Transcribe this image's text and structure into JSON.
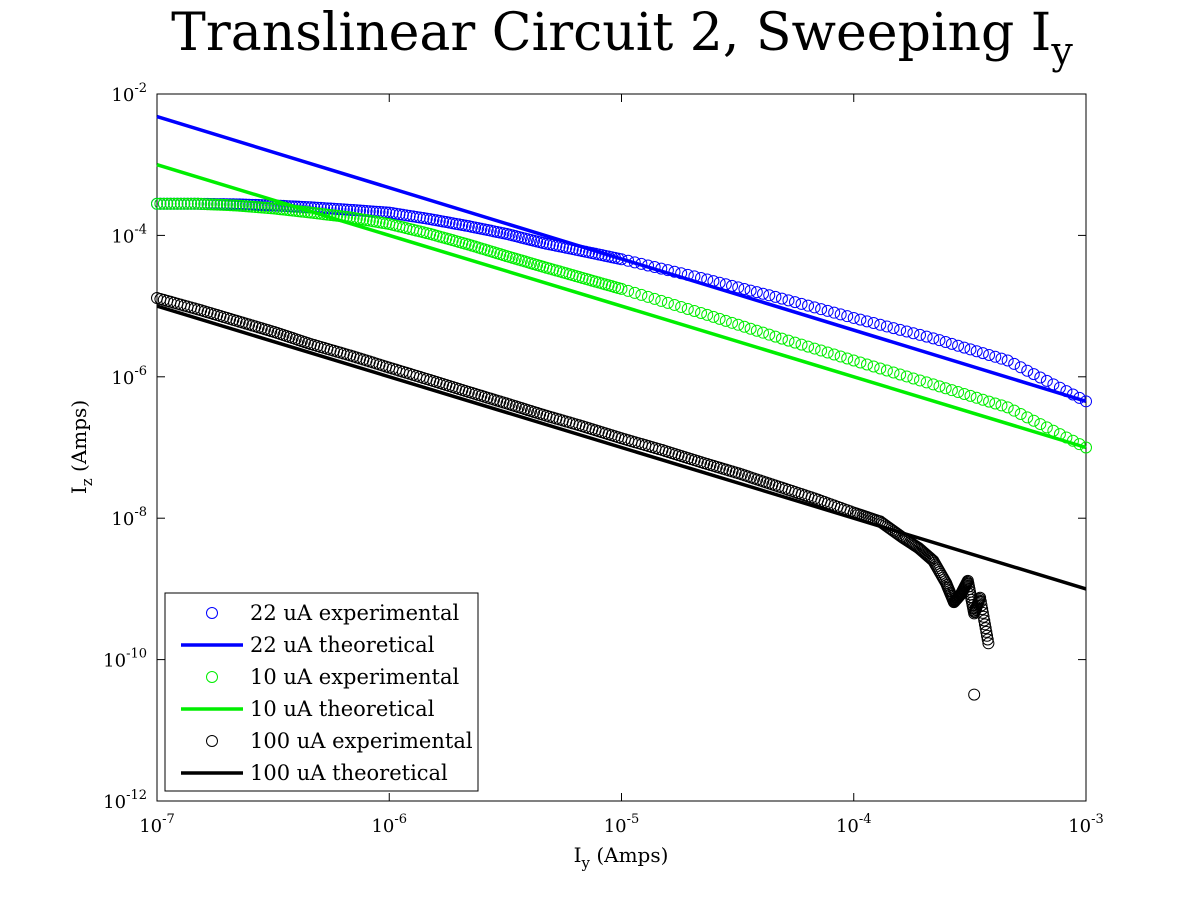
{
  "chart_data": {
    "type": "line",
    "title": {
      "main": "Translinear Circuit 2, Sweeping I",
      "sub": "y"
    },
    "xlabel": {
      "main": "I",
      "sub": "y",
      "rest": " (Amps)"
    },
    "ylabel": {
      "main": "I",
      "sub": "z",
      "rest": " (Amps)"
    },
    "xscale": "log",
    "yscale": "log",
    "xlim": [
      1e-07,
      0.001
    ],
    "ylim": [
      1e-12,
      0.01
    ],
    "grid": false,
    "legend_position": "bottom-left",
    "x_ticks": [
      {
        "value": 1e-07,
        "base": "10",
        "exp": "-7"
      },
      {
        "value": 1e-06,
        "base": "10",
        "exp": "-6"
      },
      {
        "value": 1e-05,
        "base": "10",
        "exp": "-5"
      },
      {
        "value": 0.0001,
        "base": "10",
        "exp": "-4"
      },
      {
        "value": 0.001,
        "base": "10",
        "exp": "-3"
      }
    ],
    "y_ticks": [
      {
        "value": 1e-12,
        "base": "10",
        "exp": "-12"
      },
      {
        "value": 1e-10,
        "base": "10",
        "exp": "-10"
      },
      {
        "value": 1e-08,
        "base": "10",
        "exp": "-8"
      },
      {
        "value": 1e-06,
        "base": "10",
        "exp": "-6"
      },
      {
        "value": 0.0001,
        "base": "10",
        "exp": "-4"
      },
      {
        "value": 0.01,
        "base": "10",
        "exp": "-2"
      }
    ],
    "series": [
      {
        "name": "22 uA experimental",
        "style": "markers",
        "color": "#0000ff",
        "x": [
          1e-07,
          1.5e-07,
          2.2e-07,
          3.2e-07,
          4.6e-07,
          6.8e-07,
          1e-06,
          1.5e-06,
          2.2e-06,
          3.2e-06,
          4.6e-06,
          6.8e-06,
          1e-05,
          2.2e-05,
          4.6e-05,
          0.0001,
          0.00022,
          0.00046,
          0.001
        ],
        "y": [
          0.00028,
          0.00028,
          0.000275,
          0.000265,
          0.00025,
          0.00023,
          0.00021,
          0.00017,
          0.000135,
          0.000105,
          7.8e-05,
          6e-05,
          4.6e-05,
          2.5e-05,
          1.35e-05,
          6.8e-06,
          3.5e-06,
          1.7e-06,
          4.5e-07
        ]
      },
      {
        "name": "22 uA theoretical",
        "style": "line",
        "color": "#0000ff",
        "x": [
          1e-07,
          0.001
        ],
        "y": [
          0.0048,
          4.5e-07
        ]
      },
      {
        "name": "10 uA experimental",
        "style": "markers",
        "color": "#00ee00",
        "x": [
          1e-07,
          1.5e-07,
          2.2e-07,
          3.2e-07,
          4.6e-07,
          6.8e-07,
          1e-06,
          1.5e-06,
          2.2e-06,
          3.2e-06,
          4.6e-06,
          6.8e-06,
          1e-05,
          2.2e-05,
          4.6e-05,
          0.0001,
          0.00022,
          0.00046,
          0.001
        ],
        "y": [
          0.00028,
          0.00028,
          0.000265,
          0.00024,
          0.00021,
          0.00018,
          0.000145,
          0.000105,
          7.4e-05,
          5.1e-05,
          3.6e-05,
          2.5e-05,
          1.75e-05,
          8e-06,
          3.7e-06,
          1.7e-06,
          7.8e-07,
          3.7e-07,
          1e-07
        ]
      },
      {
        "name": "10 uA theoretical",
        "style": "line",
        "color": "#00ee00",
        "x": [
          1e-07,
          0.001
        ],
        "y": [
          0.001,
          1e-07
        ]
      },
      {
        "name": "100 uA experimental",
        "style": "markers",
        "color": "#000000",
        "x": [
          1e-07,
          1.5e-07,
          2.2e-07,
          3.2e-07,
          4.6e-07,
          6.8e-07,
          1e-06,
          1.5e-06,
          2.2e-06,
          3.2e-06,
          4.6e-06,
          6.8e-06,
          1e-05,
          1.5e-05,
          2.2e-05,
          3.2e-05,
          4.6e-05,
          6.8e-05,
          0.0001,
          0.00013,
          0.00016,
          0.00019,
          0.00022,
          0.00025,
          0.00027,
          0.00029,
          0.00031,
          0.00033,
          0.00035,
          0.00038,
          0.00033
        ],
        "y": [
          1.3e-05,
          9e-06,
          6.2e-06,
          4.3e-06,
          2.9e-06,
          2e-06,
          1.35e-06,
          9e-07,
          6.1e-07,
          4.2e-07,
          2.9e-07,
          2e-07,
          1.35e-07,
          9.2e-08,
          6.2e-08,
          4.3e-08,
          2.9e-08,
          1.9e-08,
          1.2e-08,
          9e-09,
          5.5e-09,
          3.8e-09,
          2.5e-09,
          1.2e-09,
          6.5e-10,
          8.5e-10,
          1.3e-09,
          4.5e-10,
          7.5e-10,
          1.7e-10,
          3.2e-11
        ]
      },
      {
        "name": "100 uA theoretical",
        "style": "line",
        "color": "#000000",
        "x": [
          1e-07,
          0.001
        ],
        "y": [
          1e-05,
          1e-09
        ]
      }
    ]
  }
}
